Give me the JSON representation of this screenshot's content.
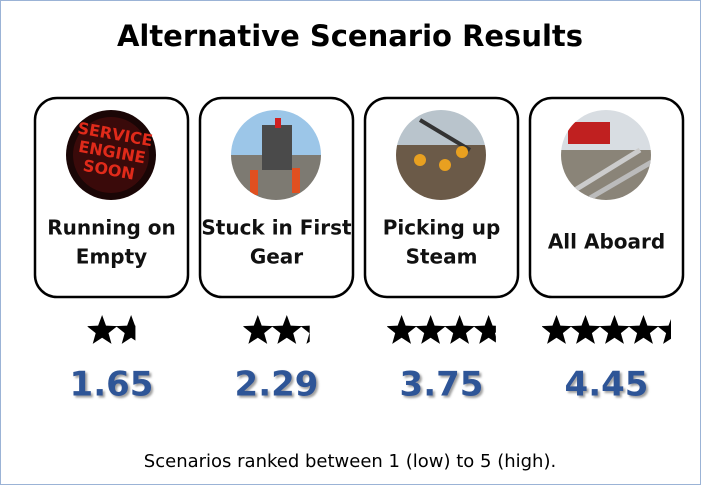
{
  "title": "Alternative Scenario Results",
  "cards": [
    {
      "label_lines": [
        "Running on",
        "Empty"
      ],
      "score": 1.65,
      "image_text": [
        "SERVICE",
        "ENGINE",
        "SOON"
      ]
    },
    {
      "label_lines": [
        "Stuck in First",
        "Gear"
      ],
      "score": 2.29
    },
    {
      "label_lines": [
        "Picking up",
        "Steam"
      ],
      "score": 3.75
    },
    {
      "label_lines": [
        "All Aboard"
      ],
      "score": 4.45
    }
  ],
  "footnote": "Scenarios ranked between 1 (low) to 5 (high)."
}
